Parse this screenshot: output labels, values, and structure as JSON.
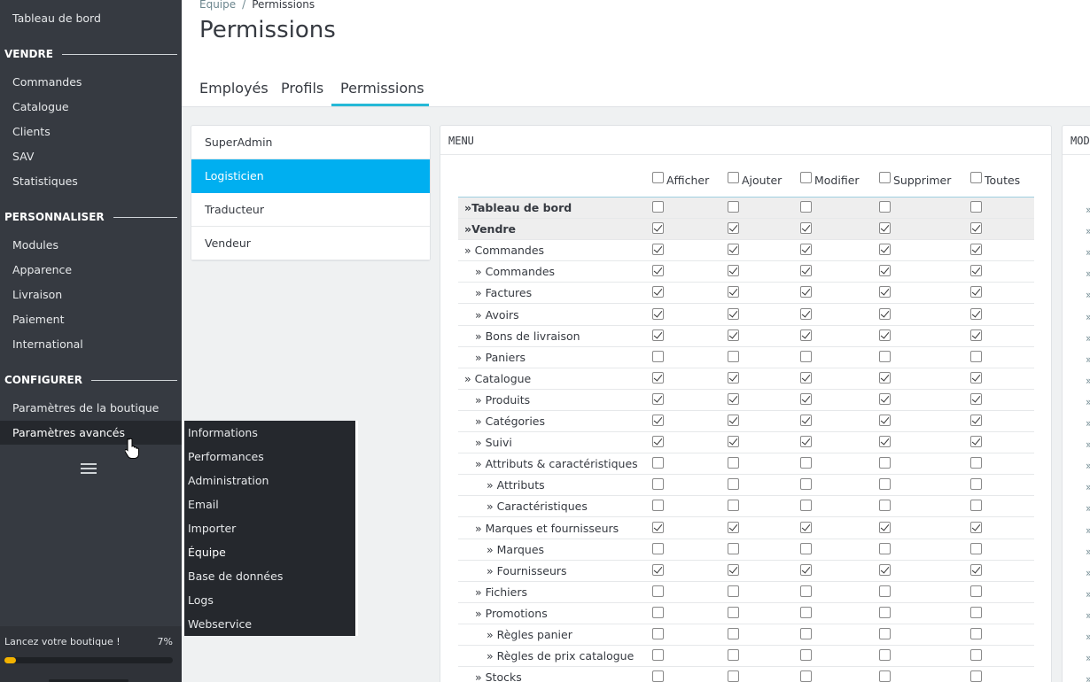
{
  "sidebar": {
    "dashboard": "Tableau de bord",
    "sections": {
      "sell": "VENDRE",
      "customize": "PERSONNALISER",
      "configure": "CONFIGURER"
    },
    "sell_items": [
      "Commandes",
      "Catalogue",
      "Clients",
      "SAV",
      "Statistiques"
    ],
    "customize_items": [
      "Modules",
      "Apparence",
      "Livraison",
      "Paiement",
      "International"
    ],
    "configure_items": [
      "Paramètres de la boutique",
      "Paramètres avancés"
    ],
    "launch": {
      "label": "Lancez votre boutique !",
      "percent_text": "7%",
      "progress": 0.07
    }
  },
  "flyout": {
    "items": [
      "Informations",
      "Performances",
      "Administration",
      "Email",
      "Importer",
      "Équipe",
      "Base de données",
      "Logs",
      "Webservice"
    ],
    "current_index": 5
  },
  "header": {
    "breadcrumb": {
      "parent": "Équipe",
      "separator": "/",
      "current": "Permissions"
    },
    "title": "Permissions",
    "tabs": [
      "Employés",
      "Profils",
      "Permissions"
    ],
    "active_tab": "Permissions"
  },
  "profiles": {
    "items": [
      "SuperAdmin",
      "Logisticien",
      "Traducteur",
      "Vendeur"
    ],
    "selected": "Logisticien"
  },
  "menu_panel": {
    "title": "MENU",
    "columns": [
      "Afficher",
      "Ajouter",
      "Modifier",
      "Supprimer",
      "Toutes"
    ],
    "rows": [
      {
        "label": "»Tableau de bord",
        "level": 0,
        "bold": true,
        "gray": true,
        "checked": [
          false,
          false,
          false,
          false,
          false
        ]
      },
      {
        "label": "»Vendre",
        "level": 0,
        "bold": true,
        "gray": true,
        "checked": [
          true,
          true,
          true,
          true,
          true
        ]
      },
      {
        "label": "» Commandes",
        "level": 0,
        "checked": [
          true,
          true,
          true,
          true,
          true
        ]
      },
      {
        "label": "» Commandes",
        "level": 1,
        "checked": [
          true,
          true,
          true,
          true,
          true
        ]
      },
      {
        "label": "» Factures",
        "level": 1,
        "checked": [
          true,
          true,
          true,
          true,
          true
        ]
      },
      {
        "label": "» Avoirs",
        "level": 1,
        "checked": [
          true,
          true,
          true,
          true,
          true
        ]
      },
      {
        "label": "» Bons de livraison",
        "level": 1,
        "checked": [
          true,
          true,
          true,
          true,
          true
        ]
      },
      {
        "label": "» Paniers",
        "level": 1,
        "checked": [
          false,
          false,
          false,
          false,
          false
        ]
      },
      {
        "label": "» Catalogue",
        "level": 0,
        "checked": [
          true,
          true,
          true,
          true,
          true
        ]
      },
      {
        "label": "» Produits",
        "level": 1,
        "checked": [
          true,
          true,
          true,
          true,
          true
        ]
      },
      {
        "label": "» Catégories",
        "level": 1,
        "checked": [
          true,
          true,
          true,
          true,
          true
        ]
      },
      {
        "label": "» Suivi",
        "level": 1,
        "checked": [
          true,
          true,
          true,
          true,
          true
        ]
      },
      {
        "label": "» Attributs & caractéristiques",
        "level": 1,
        "checked": [
          false,
          false,
          false,
          false,
          false
        ]
      },
      {
        "label": "» Attributs",
        "level": 2,
        "checked": [
          false,
          false,
          false,
          false,
          false
        ]
      },
      {
        "label": "» Caractéristiques",
        "level": 2,
        "checked": [
          false,
          false,
          false,
          false,
          false
        ]
      },
      {
        "label": "» Marques et fournisseurs",
        "level": 1,
        "checked": [
          true,
          true,
          true,
          true,
          true
        ]
      },
      {
        "label": "» Marques",
        "level": 2,
        "checked": [
          false,
          false,
          false,
          false,
          false
        ]
      },
      {
        "label": "» Fournisseurs",
        "level": 2,
        "checked": [
          true,
          true,
          true,
          true,
          true
        ]
      },
      {
        "label": "» Fichiers",
        "level": 1,
        "checked": [
          false,
          false,
          false,
          false,
          false
        ]
      },
      {
        "label": "» Promotions",
        "level": 1,
        "checked": [
          false,
          false,
          false,
          false,
          false
        ]
      },
      {
        "label": "» Règles panier",
        "level": 2,
        "checked": [
          false,
          false,
          false,
          false,
          false
        ]
      },
      {
        "label": "» Règles de prix catalogue",
        "level": 2,
        "checked": [
          false,
          false,
          false,
          false,
          false
        ]
      },
      {
        "label": "» Stocks",
        "level": 1,
        "checked": [
          false,
          false,
          false,
          false,
          false
        ]
      }
    ]
  },
  "modules_panel": {
    "title_fragment": "MOD",
    "row_marker": "»"
  }
}
